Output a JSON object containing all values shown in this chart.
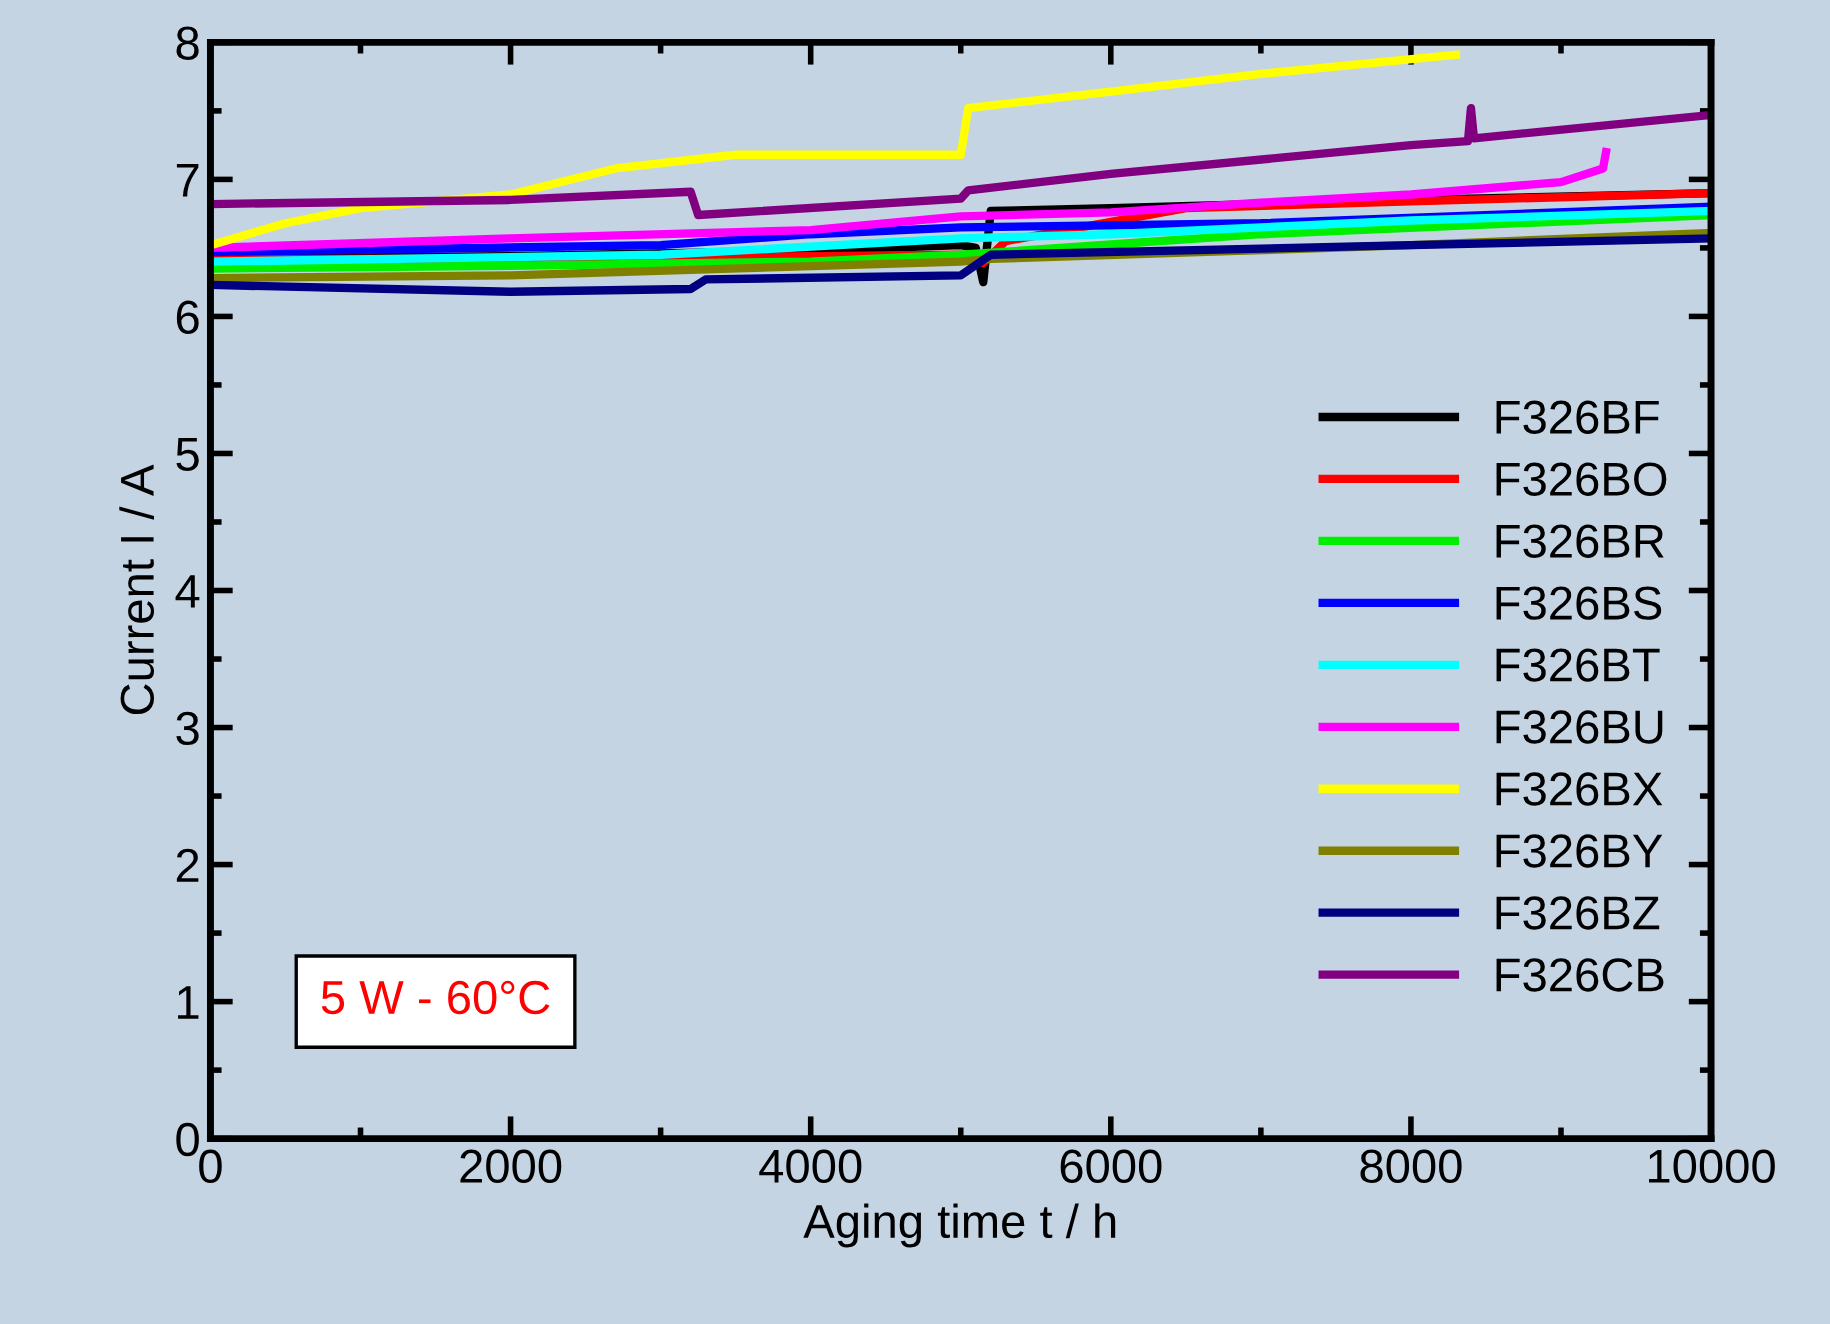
{
  "chart_data": {
    "type": "line",
    "xlabel": "Aging time t / h",
    "ylabel": "Current I / A",
    "xlim": [
      0,
      10000
    ],
    "xticks": [
      0,
      2000,
      4000,
      6000,
      8000,
      10000
    ],
    "ylim": [
      0,
      8
    ],
    "yticks": [
      0,
      1,
      2,
      3,
      4,
      5,
      6,
      7,
      8
    ],
    "grid": false,
    "legend": "right",
    "line_style": "solid",
    "marker": "none",
    "annotations": [
      "5 W - 60°C"
    ],
    "series": [
      {
        "name": "F326BF",
        "color": "#000000",
        "x": [
          0,
          2000,
          4000,
          5000,
          5100,
          5150,
          5200,
          6000,
          8000,
          10000
        ],
        "values": [
          6.42,
          6.44,
          6.48,
          6.52,
          6.5,
          6.25,
          6.77,
          6.79,
          6.85,
          6.9
        ]
      },
      {
        "name": "F326BO",
        "color": "#ff0000",
        "x": [
          0,
          2000,
          4000,
          5000,
          5150,
          5300,
          6500,
          8000,
          10000
        ],
        "values": [
          6.42,
          6.42,
          6.44,
          6.45,
          6.39,
          6.55,
          6.79,
          6.84,
          6.9
        ]
      },
      {
        "name": "F326BR",
        "color": "#00ee00",
        "x": [
          0,
          2000,
          4000,
          5000,
          7000,
          10000
        ],
        "values": [
          6.35,
          6.37,
          6.4,
          6.45,
          6.6,
          6.74
        ]
      },
      {
        "name": "F326BS",
        "color": "#0000ff",
        "x": [
          0,
          3000,
          4000,
          5000,
          7000,
          10000
        ],
        "values": [
          6.47,
          6.52,
          6.6,
          6.65,
          6.68,
          6.8
        ]
      },
      {
        "name": "F326BT",
        "color": "#00ffff",
        "x": [
          0,
          3000,
          5000,
          6000,
          8000,
          10000
        ],
        "values": [
          6.4,
          6.45,
          6.57,
          6.6,
          6.7,
          6.77
        ]
      },
      {
        "name": "F326BU",
        "color": "#ff00ff",
        "x": [
          0,
          2000,
          4000,
          5000,
          6000,
          7000,
          8000,
          9000,
          9280,
          9300
        ],
        "values": [
          6.5,
          6.57,
          6.63,
          6.73,
          6.76,
          6.83,
          6.89,
          6.98,
          7.08,
          7.2
        ]
      },
      {
        "name": "F326BX",
        "color": "#ffff00",
        "x": [
          0,
          500,
          1000,
          2000,
          2700,
          3500,
          5000,
          5050,
          6000,
          7000,
          8300
        ],
        "values": [
          6.52,
          6.68,
          6.79,
          6.89,
          7.08,
          7.18,
          7.18,
          7.52,
          7.64,
          7.77,
          7.91
        ]
      },
      {
        "name": "F326BY",
        "color": "#808000",
        "x": [
          0,
          2000,
          5000,
          5200,
          8000,
          10000
        ],
        "values": [
          6.28,
          6.3,
          6.4,
          6.42,
          6.52,
          6.61
        ]
      },
      {
        "name": "F326BZ",
        "color": "#000080",
        "x": [
          0,
          2000,
          3200,
          3300,
          5000,
          5200,
          8000,
          10000
        ],
        "values": [
          6.23,
          6.18,
          6.2,
          6.27,
          6.3,
          6.45,
          6.52,
          6.57
        ]
      },
      {
        "name": "F326CB",
        "color": "#800080",
        "x": [
          0,
          2000,
          3200,
          3250,
          5000,
          5050,
          6000,
          8000,
          8380,
          8400,
          8420,
          10000
        ],
        "values": [
          6.82,
          6.85,
          6.91,
          6.74,
          6.86,
          6.92,
          7.04,
          7.25,
          7.28,
          7.52,
          7.3,
          7.47
        ]
      }
    ]
  }
}
